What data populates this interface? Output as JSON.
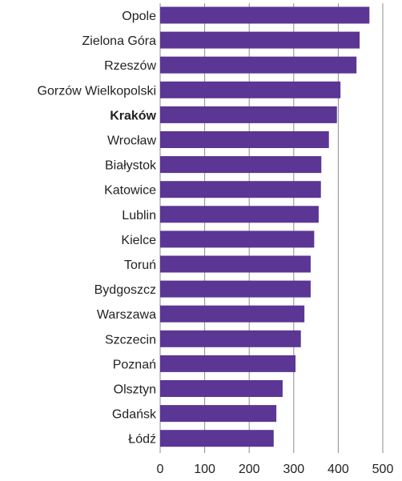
{
  "chart_data": {
    "type": "bar",
    "orientation": "horizontal",
    "categories": [
      "Opole",
      "Zielona Góra",
      "Rzeszów",
      "Gorzów Wielkopolski",
      "Kraków",
      "Wrocław",
      "Białystok",
      "Katowice",
      "Lublin",
      "Kielce",
      "Toruń",
      "Bydgoszcz",
      "Warszawa",
      "Szczecin",
      "Poznań",
      "Olsztyn",
      "Gdańsk",
      "Łódź"
    ],
    "highlighted_category": "Kraków",
    "values": [
      470,
      448,
      441,
      405,
      397,
      379,
      362,
      361,
      356,
      346,
      338,
      338,
      324,
      316,
      304,
      275,
      261,
      255
    ],
    "xlim": [
      0,
      500
    ],
    "xticks": [
      0,
      100,
      200,
      300,
      400,
      500
    ],
    "grid": "vertical",
    "bar_color": "#5b3694",
    "title": "",
    "xlabel": "",
    "ylabel": ""
  }
}
